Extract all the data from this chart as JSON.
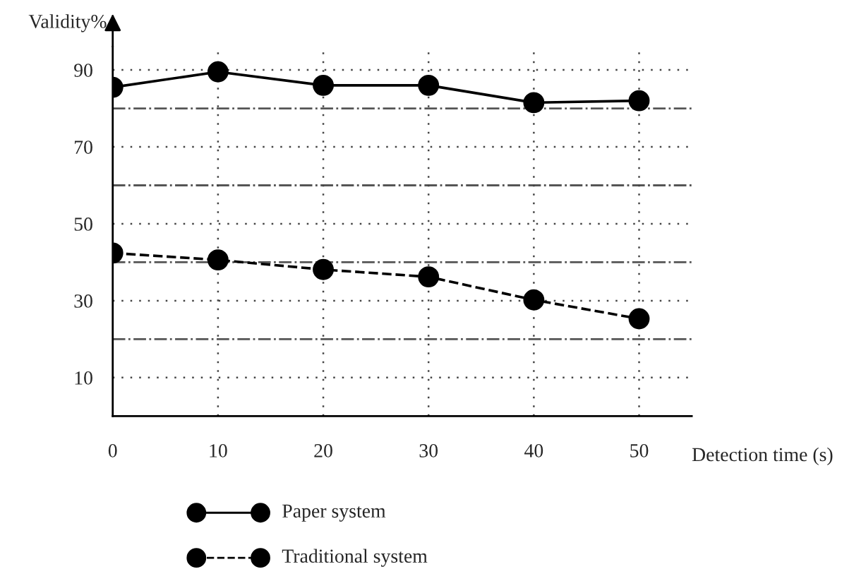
{
  "chart_data": {
    "type": "line",
    "xlabel": "Detection time (s)",
    "ylabel": "Validity%",
    "x": [
      0,
      10,
      20,
      30,
      40,
      50
    ],
    "series": [
      {
        "name": "Paper system",
        "color": "#000000",
        "line_style": "solid",
        "values": [
          85.5,
          89.5,
          86,
          86,
          81.5,
          82
        ]
      },
      {
        "name": "Traditional system",
        "color": "#000000",
        "line_style": "dashed",
        "values": [
          42.4,
          40.6,
          38.1,
          36.2,
          30.2,
          25.3
        ]
      }
    ],
    "xlim": [
      0,
      55
    ],
    "ylim": [
      0,
      96
    ],
    "xticks": [
      0,
      10,
      20,
      30,
      40,
      50
    ],
    "yticks": [
      10,
      30,
      50,
      70,
      90
    ],
    "ref_lines": [
      {
        "axis": "y",
        "value": 20,
        "color": "#555555",
        "line_style": "dashdot"
      },
      {
        "axis": "y",
        "value": 40,
        "color": "#555555",
        "line_style": "dashdot"
      },
      {
        "axis": "y",
        "value": 60,
        "color": "#555555",
        "line_style": "dashdot"
      },
      {
        "axis": "y",
        "value": 80,
        "color": "#555555",
        "line_style": "dashdot"
      }
    ],
    "grid": true,
    "marker": "circle",
    "legend": "bottom"
  }
}
